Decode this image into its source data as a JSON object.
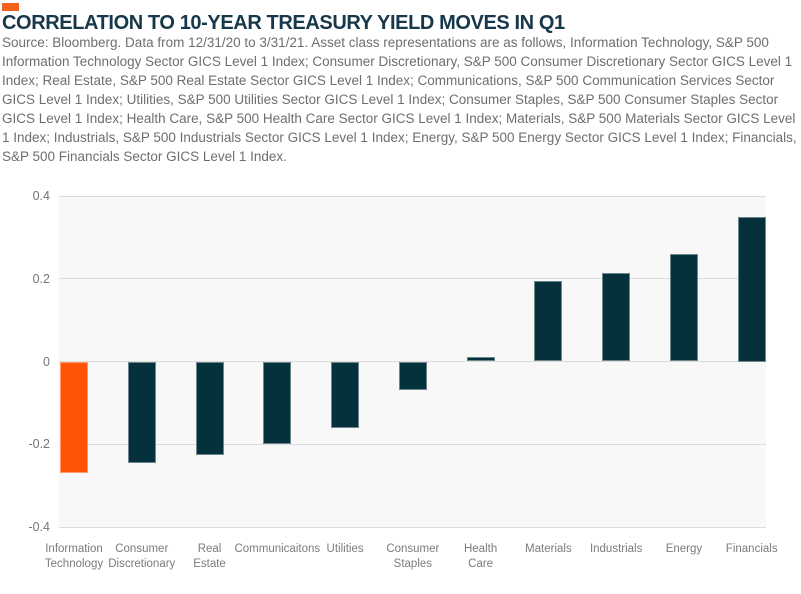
{
  "page": {
    "accent_color": "#F2641C"
  },
  "header": {
    "title": "CORRELATION TO 10-YEAR TREASURY YIELD MOVES IN Q1",
    "source_note": "Source: Bloomberg. Data from 12/31/20 to 3/31/21. Asset class representations are as follows, Information Technology, S&P 500 Information Technology Sector GICS Level 1 Index; Consumer Discretionary, S&P 500 Consumer Discretionary Sector GICS Level 1 Index; Real Estate, S&P 500 Real Estate Sector GICS Level 1 Index; Communications, S&P 500 Communication Services Sector GICS Level 1 Index; Utilities, S&P 500 Utilities Sector GICS Level 1 Index; Consumer Staples, S&P 500 Consumer Staples Sector GICS Level 1 Index; Health Care, S&P 500 Health Care Sector GICS Level 1 Index; Materials, S&P 500 Materials Sector GICS Level 1 Index; Industrials, S&P 500 Industrials Sector GICS Level 1 Index; Energy, S&P 500 Energy Sector GICS Level 1 Index; Financials, S&P 500 Financials Sector GICS Level 1 Index."
  },
  "chart_data": {
    "type": "bar",
    "title": "CORRELATION TO 10-YEAR TREASURY YIELD MOVES IN Q1",
    "categories": [
      "Information\nTechnology",
      "Consumer\nDiscretionary",
      "Real\nEstate",
      "Communicaitons",
      "Utilities",
      "Consumer\nStaples",
      "Health\nCare",
      "Materials",
      "Industrials",
      "Energy",
      "Financials"
    ],
    "values": [
      -0.27,
      -0.245,
      -0.225,
      -0.2,
      -0.16,
      -0.07,
      0.01,
      0.195,
      0.215,
      0.26,
      0.35
    ],
    "xlabel": "",
    "ylabel": "",
    "ylim": [
      -0.4,
      0.4
    ],
    "yticks": [
      0.4,
      0.2,
      0,
      -0.2,
      -0.4
    ],
    "ytick_labels": [
      "0.4",
      "0.2",
      "0",
      "-0.2",
      "-0.4"
    ],
    "grid": true,
    "legend": "none",
    "bar_color": "#04313C",
    "highlight_index": 0,
    "highlight_color": "#FF5405",
    "plot_background": "#F8F8F8",
    "gridline_color": "#DCDCDC"
  }
}
